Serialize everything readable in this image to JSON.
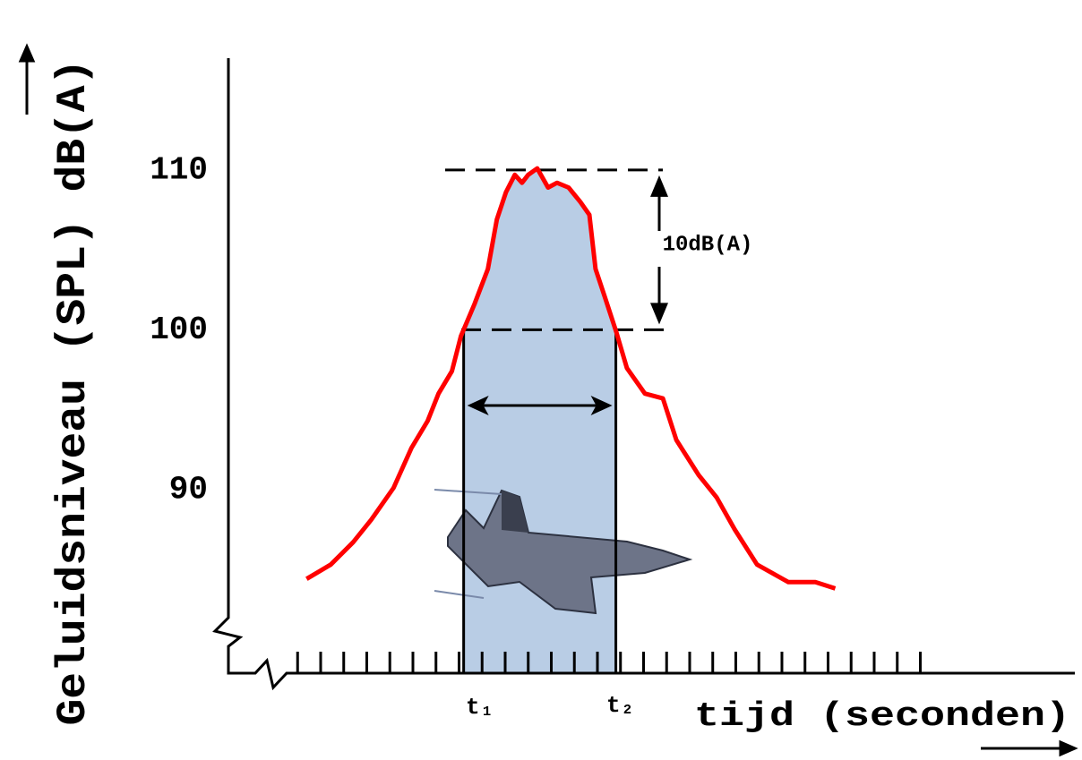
{
  "chart_data": {
    "type": "line",
    "y_label": "Geluidsniveau (SPL) dB(A)",
    "x_label": "tijd (seconden)",
    "ylim": [
      78.5,
      117
    ],
    "yticks": [
      90,
      100,
      110
    ],
    "xlim": [
      -3,
      33.7
    ],
    "xticks": [
      0,
      1,
      2,
      3,
      4,
      5,
      6,
      7,
      8,
      9,
      10,
      11,
      12,
      13,
      14,
      15,
      16,
      17,
      18,
      19,
      20,
      21,
      22,
      23,
      24,
      25,
      26,
      27
    ],
    "x": [
      0.39,
      1.44,
      2.41,
      3.19,
      4.16,
      4.94,
      5.64,
      6.11,
      6.69,
      7.08,
      7.67,
      8.25,
      8.64,
      9.03,
      9.42,
      9.73,
      10.0,
      10.39,
      10.86,
      11.25,
      11.75,
      12.26,
      12.65,
      12.92,
      13.31,
      13.81,
      14.28,
      15.06,
      15.84,
      16.42,
      17.39,
      18.17,
      18.95,
      19.92,
      21.28,
      22.45,
      23.31
    ],
    "series": [
      {
        "color": "#ff0000",
        "values": [
          84.4,
          85.3,
          86.7,
          88.1,
          90.1,
          92.6,
          94.3,
          96.0,
          97.4,
          99.6,
          101.6,
          103.8,
          106.9,
          108.6,
          109.7,
          109.2,
          109.7,
          110.1,
          108.9,
          109.2,
          108.9,
          108.0,
          107.2,
          103.8,
          102.1,
          99.9,
          97.6,
          96.0,
          95.7,
          93.1,
          90.9,
          89.5,
          87.5,
          85.3,
          84.2,
          84.2,
          83.8
        ]
      }
    ],
    "span": {
      "color": "#b9cde5",
      "start": {
        "label": "t₁",
        "x": 7.2
      },
      "end": {
        "label": "t₂",
        "x": 13.8
      }
    },
    "reference_lines": [
      110,
      100
    ],
    "difference_label": "10dB(A)"
  }
}
